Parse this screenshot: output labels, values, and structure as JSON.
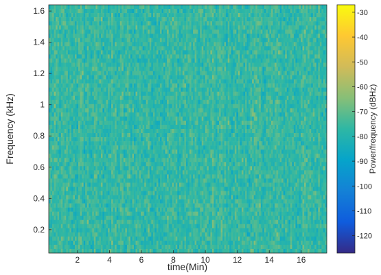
{
  "chart_data": {
    "type": "heatmap",
    "xlabel": "time(Min)",
    "ylabel": "Frequency (kHz)",
    "xlim": [
      0.2,
      17.6
    ],
    "ylim": [
      0.05,
      1.64
    ],
    "x_ticks": [
      2,
      4,
      6,
      8,
      10,
      12,
      14,
      16
    ],
    "y_ticks": [
      0.2,
      0.4,
      0.6,
      0.8,
      1,
      1.2,
      1.4,
      1.6
    ],
    "colorbar": {
      "label": "Power/frequency (dBHz)",
      "range": [
        -127,
        -27
      ],
      "ticks": [
        -30,
        -40,
        -50,
        -60,
        -70,
        -80,
        -90,
        -100,
        -110,
        -120
      ],
      "colormap": "parula",
      "colormap_stops": [
        "#352a87",
        "#0f5cdd",
        "#1481d6",
        "#06a4ca",
        "#2eb7a4",
        "#87bf77",
        "#d1bb59",
        "#fec832",
        "#f9fb0e"
      ]
    },
    "values_description_dB": {
      "typical_min": -85,
      "typical_max": -68,
      "dominant_level": -77
    },
    "grid": false,
    "legend": "none"
  }
}
